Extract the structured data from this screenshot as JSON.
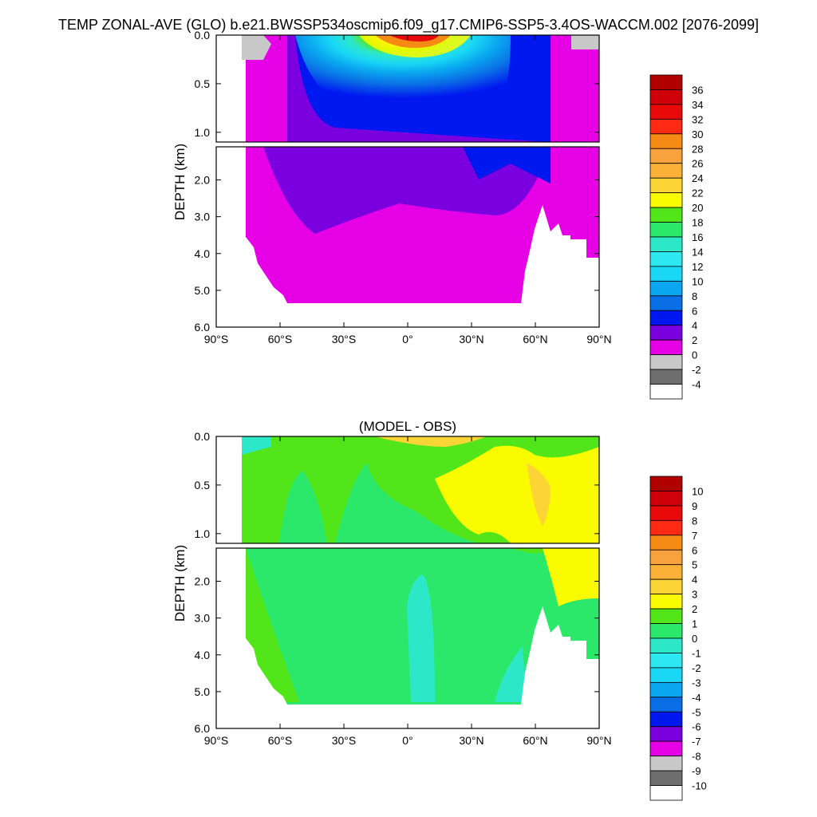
{
  "page_title": "TEMP ZONAL-AVE (GLO) b.e21.BWSSP534oscmip6.f09_g17.CMIP6-SSP5-3.4OS-WACCM.002 [2076-2099]",
  "chart_data": [
    {
      "type": "heatmap",
      "subtype": "filled-contour depth-latitude section",
      "title": "",
      "ylabel": "DEPTH (km)",
      "xlabel": "",
      "x_ticks": [
        "90°S",
        "60°S",
        "30°S",
        "0°",
        "30°N",
        "60°N",
        "90°N"
      ],
      "x_tick_values": [
        -90,
        -60,
        -30,
        0,
        30,
        60,
        90
      ],
      "upper_y_ticks": [
        "0.0",
        "0.5",
        "1.0"
      ],
      "upper_y_tick_values": [
        0.0,
        0.5,
        1.0
      ],
      "lower_y_ticks": [
        "2.0",
        "3.0",
        "4.0",
        "5.0",
        "6.0"
      ],
      "lower_y_tick_values": [
        2.0,
        3.0,
        4.0,
        5.0,
        6.0
      ],
      "xlim": [
        -90,
        90
      ],
      "ylim_upper": [
        0,
        1.1
      ],
      "ylim_lower": [
        1.1,
        6.0
      ],
      "legend": {
        "placement": "right",
        "labels": [
          "36",
          "34",
          "32",
          "30",
          "28",
          "26",
          "24",
          "22",
          "20",
          "18",
          "16",
          "14",
          "12",
          "10",
          "8",
          "6",
          "4",
          "2",
          "0",
          "-2",
          "-4"
        ],
        "colors": [
          "#b00000",
          "#d0000a",
          "#e80a0a",
          "#ff2a14",
          "#f58a14",
          "#f7a23e",
          "#fbb138",
          "#fdd435",
          "#fbfb00",
          "#52e61a",
          "#2be86a",
          "#2ce8c8",
          "#2de8f0",
          "#1ad8f5",
          "#0aa6f0",
          "#0a6ee6",
          "#0018f0",
          "#7a00e0",
          "#e600e6",
          "#c8c8c8",
          "#6e6e6e",
          "#ffffff"
        ]
      },
      "field_description": "Warm surface water (>20) near equator in top 200 m; cooling with depth to 0-4 by 1 km; deep ocean 0-2 with 2-4 tongue from 40S",
      "bathymetry_latitudes": [
        -78,
        -73,
        -68,
        -63,
        -58,
        -52,
        -46,
        -40,
        -20,
        0,
        20,
        40,
        50,
        54,
        58,
        62,
        65,
        70,
        75,
        80,
        85,
        90
      ],
      "bathymetry_depth_km": [
        0.5,
        3.0,
        4.0,
        4.8,
        5.3,
        5.35,
        5.35,
        5.35,
        5.35,
        5.35,
        5.35,
        5.35,
        5.3,
        4.3,
        4.0,
        2.7,
        3.9,
        3.3,
        3.9,
        4.1,
        4.1,
        4.1
      ]
    },
    {
      "type": "heatmap",
      "subtype": "filled-contour depth-latitude section",
      "title": "(MODEL - OBS)",
      "ylabel": "DEPTH (km)",
      "xlabel": "",
      "x_ticks": [
        "90°S",
        "60°S",
        "30°S",
        "0°",
        "30°N",
        "60°N",
        "90°N"
      ],
      "x_tick_values": [
        -90,
        -60,
        -30,
        0,
        30,
        60,
        90
      ],
      "upper_y_ticks": [
        "0.0",
        "0.5",
        "1.0"
      ],
      "upper_y_tick_values": [
        0.0,
        0.5,
        1.0
      ],
      "lower_y_ticks": [
        "2.0",
        "3.0",
        "4.0",
        "5.0",
        "6.0"
      ],
      "lower_y_tick_values": [
        2.0,
        3.0,
        4.0,
        5.0,
        6.0
      ],
      "xlim": [
        -90,
        90
      ],
      "ylim_upper": [
        0,
        1.1
      ],
      "ylim_lower": [
        1.1,
        6.0
      ],
      "legend": {
        "placement": "right",
        "labels": [
          "10",
          "9",
          "8",
          "7",
          "6",
          "5",
          "4",
          "3",
          "2",
          "1",
          "0",
          "-1",
          "-2",
          "-3",
          "-4",
          "-5",
          "-6",
          "-7",
          "-8",
          "-9",
          "-10"
        ],
        "colors": [
          "#b00000",
          "#d0000a",
          "#e80a0a",
          "#ff2a14",
          "#f58a14",
          "#f7a23e",
          "#fbb138",
          "#fdd435",
          "#fbfb00",
          "#52e61a",
          "#2be86a",
          "#2ce8c8",
          "#2de8f0",
          "#1ad8f5",
          "#0aa6f0",
          "#0a6ee6",
          "#0018f0",
          "#7a00e0",
          "#e600e6",
          "#c8c8c8",
          "#6e6e6e",
          "#ffffff"
        ]
      },
      "field_description": "Mostly +1 to +2 bias; +2 to +4 in Northern Hemisphere upper 1 km; 0 to +1 band in deep tropics/Arctic",
      "bathymetry_latitudes": [
        -78,
        -73,
        -68,
        -63,
        -58,
        -52,
        -46,
        -40,
        -20,
        0,
        20,
        40,
        50,
        54,
        58,
        62,
        65,
        70,
        75,
        80,
        85,
        90
      ],
      "bathymetry_depth_km": [
        0.5,
        3.0,
        4.0,
        4.8,
        5.3,
        5.35,
        5.35,
        5.35,
        5.35,
        5.35,
        5.35,
        5.35,
        5.3,
        4.3,
        4.0,
        2.7,
        3.9,
        3.3,
        3.9,
        4.1,
        4.1,
        4.1
      ]
    }
  ]
}
